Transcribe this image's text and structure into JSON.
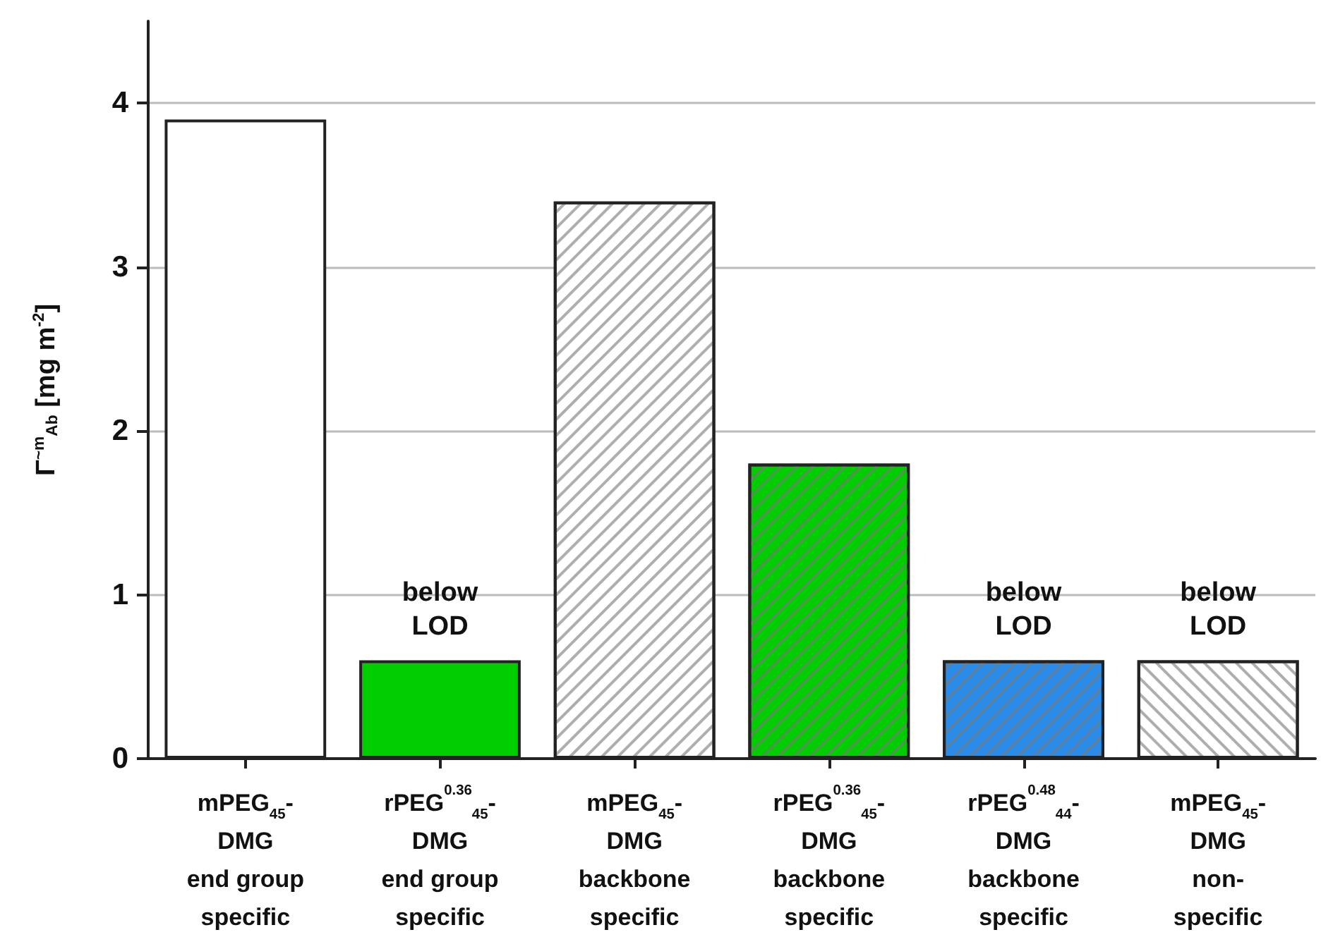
{
  "chart_data": {
    "type": "bar",
    "ylabel": "Γ$^{~m}$$_{Ab}$ [mg m$^{-2}$]",
    "categories": [
      "mPEG$_{45}$-\nDMG\nend group\nspecific",
      "rPEG$^{0.36}$$_{45}$-\nDMG\nend group\nspecific",
      "mPEG$_{45}$-\nDMG\nbackbone\nspecific",
      "rPEG$^{0.36}$$_{45}$-\nDMG\nbackbone\nspecific",
      "rPEG$^{0.48}$$_{44}$-\nDMG\nbackbone\nspecific",
      "mPEG$_{45}$-\nDMG\nnon-\nspecific"
    ],
    "values": [
      3.9,
      0.6,
      3.4,
      1.8,
      0.6,
      0.6
    ],
    "colors": [
      "#ffffff",
      "#00cc00",
      "#ffffff",
      "#00cc00",
      "#2a8be8",
      "#ffffff"
    ],
    "ylim": [
      0,
      4.5
    ],
    "yticks": [
      0,
      1,
      2,
      3,
      4
    ],
    "grid": "y",
    "annotations": [
      {
        "text": "below\nLOD",
        "x": "rPEG$^{0.36}$$_{45}$-\nDMG\nend group\nspecific",
        "y": 0.6
      },
      {
        "text": "below\nLOD",
        "x": "rPEG$^{0.48}$$_{44}$-\nDMG\nbackbone\nspecific",
        "y": 0.6
      },
      {
        "text": "below\nLOD",
        "x": "mPEG$_{45}$-\nDMG\nnon-\nspecific",
        "y": 0.6
      }
    ]
  }
}
